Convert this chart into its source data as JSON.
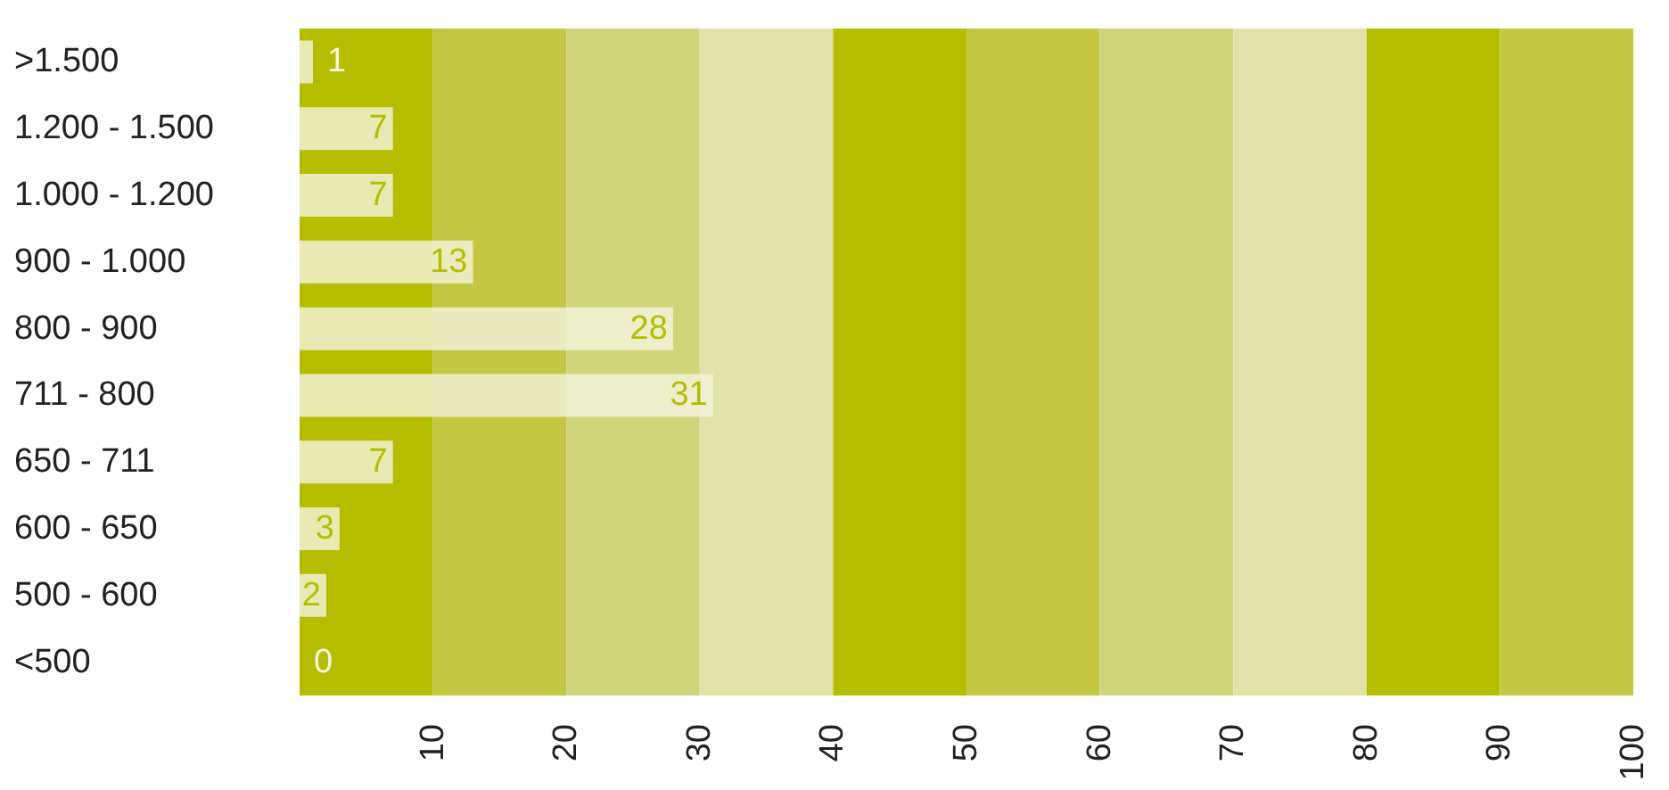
{
  "chart_data": {
    "type": "bar",
    "orientation": "horizontal",
    "categories": [
      ">1.500",
      "1.200 - 1.500",
      "1.000 - 1.200",
      "900 - 1.000",
      "800 - 900",
      "711 - 800",
      "650 - 711",
      "600 - 650",
      "500 - 600",
      "<500"
    ],
    "values": [
      1,
      7,
      7,
      13,
      28,
      31,
      7,
      3,
      2,
      0
    ],
    "color": "#f3f4dc",
    "data_labels": true,
    "xlim": [
      0,
      100
    ],
    "xticks": [
      10,
      20,
      30,
      40,
      50,
      60,
      70,
      80,
      90,
      100
    ],
    "grid": false,
    "legend": false,
    "bands": [
      {
        "axis": "x",
        "from": 0,
        "to": 10,
        "color": "#b5bd00"
      },
      {
        "axis": "x",
        "from": 10,
        "to": 20,
        "color": "#c3c843"
      },
      {
        "axis": "x",
        "from": 20,
        "to": 30,
        "color": "#d1d57a"
      },
      {
        "axis": "x",
        "from": 30,
        "to": 40,
        "color": "#e0e2aa"
      },
      {
        "axis": "x",
        "from": 40,
        "to": 50,
        "color": "#b5bd00"
      },
      {
        "axis": "x",
        "from": 50,
        "to": 60,
        "color": "#c3c843"
      },
      {
        "axis": "x",
        "from": 60,
        "to": 70,
        "color": "#d1d57a"
      },
      {
        "axis": "x",
        "from": 70,
        "to": 80,
        "color": "#e0e2aa"
      },
      {
        "axis": "x",
        "from": 80,
        "to": 90,
        "color": "#b5bd00"
      },
      {
        "axis": "x",
        "from": 90,
        "to": 100,
        "color": "#c3c843"
      }
    ]
  }
}
